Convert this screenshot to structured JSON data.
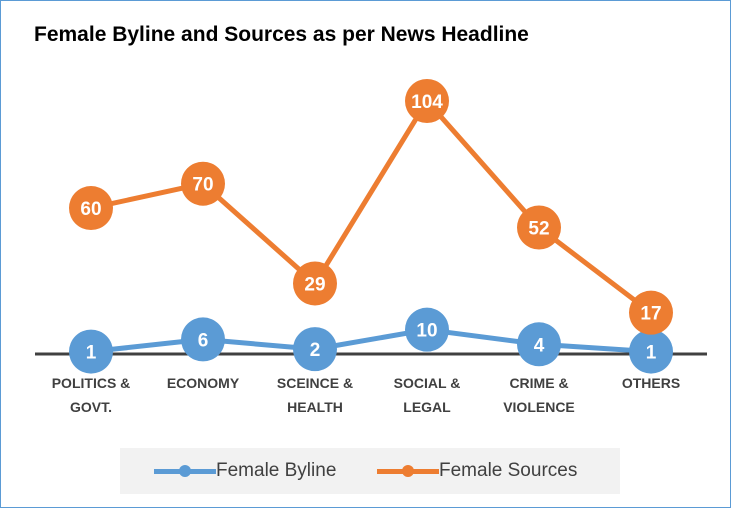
{
  "title": "Female Byline and Sources as per News Headline",
  "colors": {
    "byline": "#5b9bd5",
    "sources": "#ed7d31",
    "axis": "#404040",
    "label_text": "#ffffff"
  },
  "chart_data": {
    "type": "line",
    "title": "Female Byline and Sources as per News Headline",
    "categories": [
      [
        "POLITICS &",
        "GOVT."
      ],
      [
        "ECONOMY"
      ],
      [
        "SCEINCE &",
        "HEALTH"
      ],
      [
        "SOCIAL &",
        "LEGAL"
      ],
      [
        "CRIME &",
        "VIOLENCE"
      ],
      [
        "OTHERS"
      ]
    ],
    "series": [
      {
        "name": "Female Byline",
        "values": [
          1,
          6,
          2,
          10,
          4,
          1
        ]
      },
      {
        "name": "Female Sources",
        "values": [
          60,
          70,
          29,
          104,
          52,
          17
        ]
      }
    ],
    "data_labels": true,
    "ylim": [
      0,
      130
    ],
    "grid": false,
    "legend_position": "bottom"
  },
  "legend": {
    "items": [
      {
        "label": "Female Byline",
        "icon": "line-circle-marker"
      },
      {
        "label": "Female Sources",
        "icon": "line-circle-marker"
      }
    ]
  }
}
